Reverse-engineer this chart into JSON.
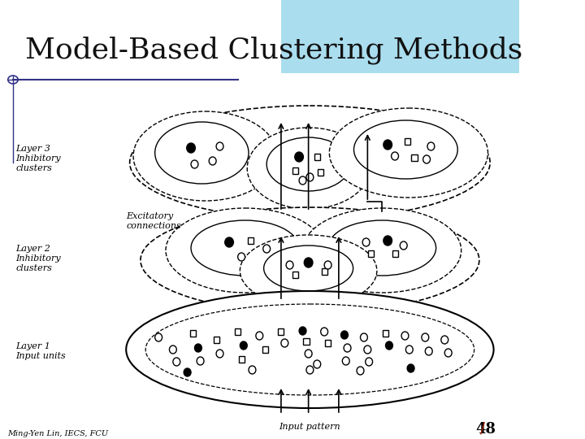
{
  "title": "Model-Based Clustering Methods",
  "title_fontsize": 26,
  "subtitle_author": "Ming-Yen Lin, IECS, FCU",
  "slide_number": "48",
  "bg_color": "#ffffff",
  "top_right_color": "#aaddee",
  "title_color": "#111111",
  "line_color": "#333388"
}
